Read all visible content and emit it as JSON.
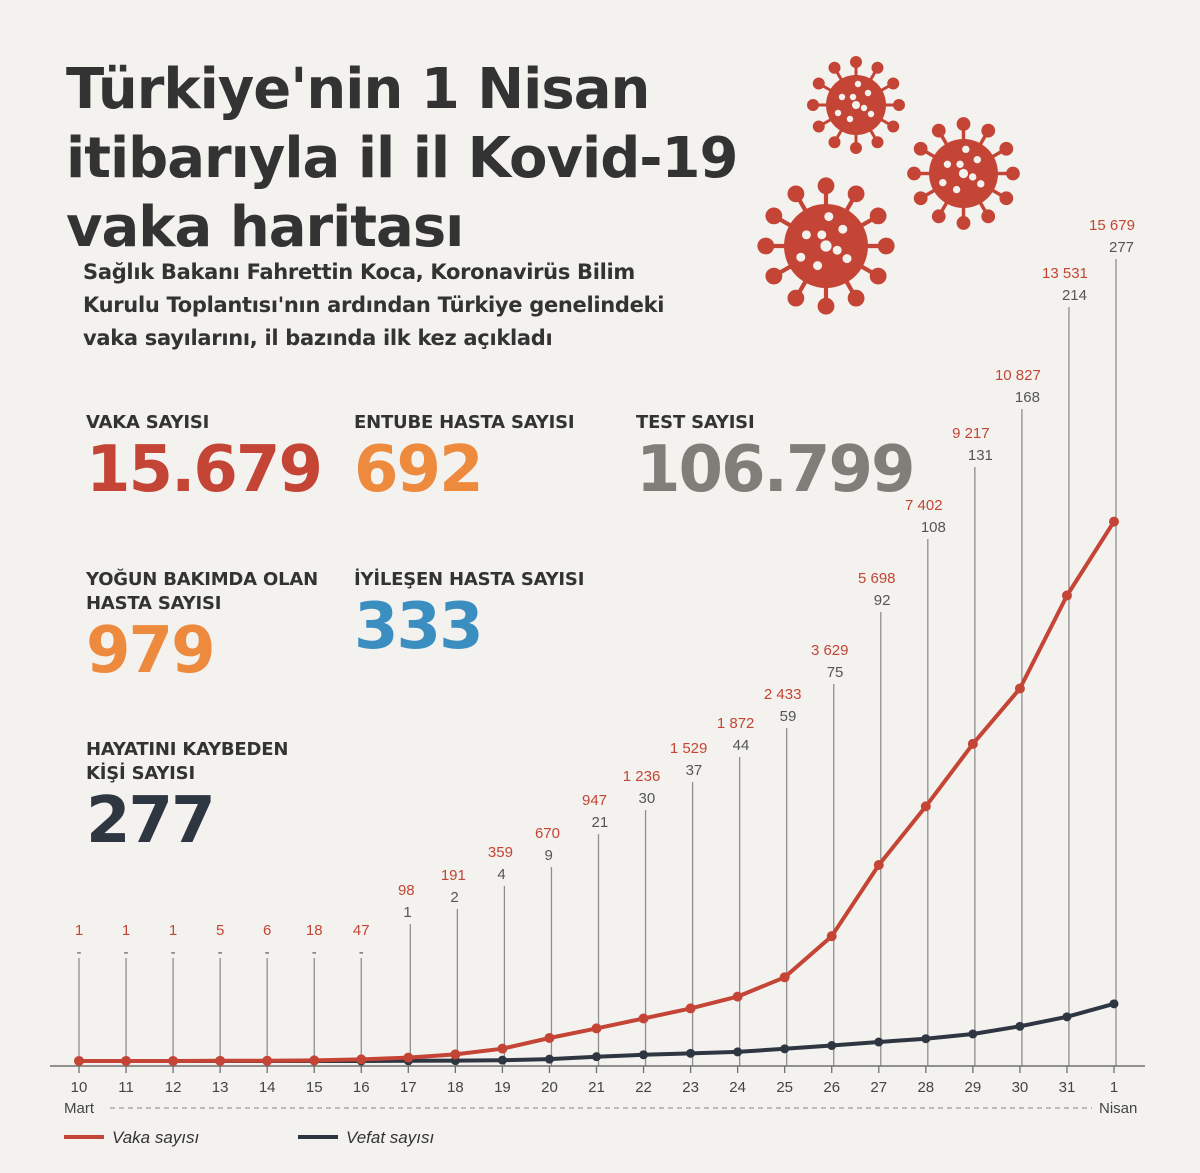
{
  "title": {
    "lines": [
      "Türkiye'nin 1 Nisan",
      "itibarıyla il il Kovid-19",
      "vaka haritası"
    ]
  },
  "subtitle": {
    "lines": [
      "Sağlık Bakanı Fahrettin Koca, Koronavirüs Bilim",
      "Kurulu Toplantısı'nın ardından Türkiye genelindeki",
      "vaka sayılarını, il bazında ilk kez açıkladı"
    ]
  },
  "stats": {
    "vaka": {
      "label": [
        "VAKA SAYISI"
      ],
      "value": "15.679",
      "color": "#c44536"
    },
    "entube": {
      "label": [
        "ENTUBE HASTA SAYISI"
      ],
      "value": "692",
      "color": "#ee8a3d"
    },
    "test": {
      "label": [
        "TEST SAYISI"
      ],
      "value": "106.799",
      "color": "#7f7e79"
    },
    "yogun": {
      "label": [
        "YOĞUN BAKIMDA OLAN",
        "HASTA SAYISI"
      ],
      "value": "979",
      "color": "#ee8a3d"
    },
    "iyilesen": {
      "label": [
        "İYİLEŞEN HASTA SAYISI"
      ],
      "value": "333",
      "color": "#3b8ec0"
    },
    "kaybeden": {
      "label": [
        "HAYATINI KAYBEDEN",
        "KİŞİ SAYISI"
      ],
      "value": "277",
      "color": "#2e3641"
    }
  },
  "colors": {
    "cases": "#c44536",
    "deaths": "#2e3641",
    "grid": "#8e8e8e",
    "virus": "#c44536"
  },
  "decor": {
    "icons": [
      "virus-icon",
      "virus-icon",
      "virus-icon"
    ]
  },
  "chart_data": {
    "type": "line",
    "categories": [
      "10",
      "11",
      "12",
      "13",
      "14",
      "15",
      "16",
      "17",
      "18",
      "19",
      "20",
      "21",
      "22",
      "23",
      "24",
      "25",
      "26",
      "27",
      "28",
      "29",
      "30",
      "31",
      "1"
    ],
    "start_label": "Mart",
    "end_label": "Nisan",
    "series": [
      {
        "name": "Vaka sayısı",
        "values": [
          1,
          1,
          1,
          5,
          6,
          18,
          47,
          98,
          191,
          359,
          670,
          947,
          1236,
          1529,
          1872,
          2433,
          3629,
          5698,
          7402,
          9217,
          10827,
          13531,
          15679
        ],
        "labels": [
          "1",
          "1",
          "1",
          "5",
          "6",
          "18",
          "47",
          "98",
          "191",
          "359",
          "670",
          "947",
          "1 236",
          "1 529",
          "1 872",
          "2 433",
          "3 629",
          "5 698",
          "7 402",
          "9 217",
          "10 827",
          "13 531",
          "15 679"
        ]
      },
      {
        "name": "Vefat sayısı",
        "values": [
          0,
          0,
          0,
          0,
          0,
          0,
          0,
          1,
          2,
          4,
          9,
          21,
          30,
          37,
          44,
          59,
          75,
          92,
          108,
          131,
          168,
          214,
          277
        ],
        "labels": [
          "-",
          "-",
          "-",
          "-",
          "-",
          "-",
          "-",
          "1",
          "2",
          "4",
          "9",
          "21",
          "30",
          "37",
          "44",
          "59",
          "75",
          "92",
          "108",
          "131",
          "168",
          "214",
          "277"
        ]
      }
    ],
    "title": "",
    "xlabel": "",
    "ylabel": "",
    "ylim": [
      0,
      25000
    ],
    "grid": false,
    "legend": "bottom-left"
  }
}
